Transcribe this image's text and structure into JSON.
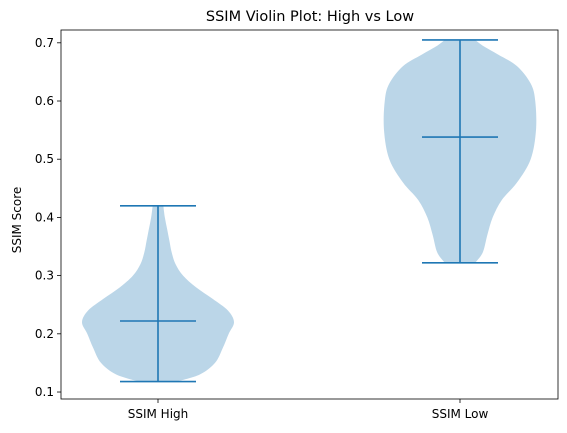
{
  "chart_data": {
    "type": "violin",
    "title": "SSIM Violin Plot: High vs Low",
    "xlabel": "",
    "ylabel": "SSIM Score",
    "categories": [
      "SSIM High",
      "SSIM Low"
    ],
    "ylim": [
      0.088,
      0.722
    ],
    "yticks": [
      0.1,
      0.2,
      0.3,
      0.4,
      0.5,
      0.6,
      0.7
    ],
    "ytick_labels": [
      "0.1",
      "0.2",
      "0.3",
      "0.4",
      "0.5",
      "0.6",
      "0.7"
    ],
    "series": [
      {
        "category": "SSIM High",
        "min": 0.118,
        "max": 0.42,
        "median": 0.222,
        "density_profile": [
          [
            0.118,
            0.25
          ],
          [
            0.13,
            0.55
          ],
          [
            0.15,
            0.75
          ],
          [
            0.175,
            0.85
          ],
          [
            0.2,
            0.93
          ],
          [
            0.22,
            1.0
          ],
          [
            0.24,
            0.92
          ],
          [
            0.26,
            0.72
          ],
          [
            0.28,
            0.5
          ],
          [
            0.3,
            0.33
          ],
          [
            0.32,
            0.23
          ],
          [
            0.34,
            0.18
          ],
          [
            0.36,
            0.15
          ],
          [
            0.38,
            0.12
          ],
          [
            0.4,
            0.09
          ],
          [
            0.42,
            0.07
          ]
        ]
      },
      {
        "category": "SSIM Low",
        "min": 0.322,
        "max": 0.705,
        "median": 0.538,
        "density_profile": [
          [
            0.322,
            0.2
          ],
          [
            0.34,
            0.3
          ],
          [
            0.37,
            0.36
          ],
          [
            0.4,
            0.43
          ],
          [
            0.43,
            0.55
          ],
          [
            0.46,
            0.75
          ],
          [
            0.5,
            0.93
          ],
          [
            0.55,
            1.0
          ],
          [
            0.6,
            0.99
          ],
          [
            0.63,
            0.93
          ],
          [
            0.66,
            0.75
          ],
          [
            0.68,
            0.5
          ],
          [
            0.695,
            0.3
          ],
          [
            0.705,
            0.2
          ]
        ]
      }
    ],
    "colors": {
      "body_fill": "#1f77b4",
      "body_opacity": 0.3,
      "lines": "#1f77b4"
    },
    "grid": false,
    "legend": "none"
  }
}
